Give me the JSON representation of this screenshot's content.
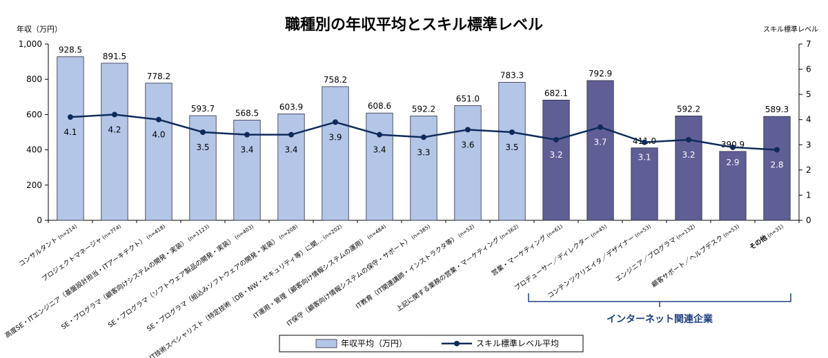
{
  "chart_data": {
    "type": "bar",
    "title": "職種別の年収平均とスキル標準レベル",
    "ylabel": "年収（万円）",
    "y2label": "スキル標準レベル",
    "ylim": [
      0,
      1000
    ],
    "yticks": [
      "0",
      "200",
      "400",
      "600",
      "800",
      "1,000"
    ],
    "y2lim": [
      0,
      7
    ],
    "y2ticks": [
      "0",
      "1",
      "2",
      "3",
      "4",
      "5",
      "6",
      "7"
    ],
    "categories": [
      {
        "label": "コンサルタント",
        "n": "(n=214)"
      },
      {
        "label": "プロジェクトマネージャ",
        "n": "(n=774)"
      },
      {
        "label": "高度SE・ITエンジニア（基盤設計担当・ITアーキテクト）",
        "n": "(n=418)"
      },
      {
        "label": "SE・プログラマ（顧客向けシステムの開発・実装）",
        "n": "(n=1123)"
      },
      {
        "label": "SE・プログラマ（ソフトウェア製品の開発・実装）",
        "n": "(n=403)"
      },
      {
        "label": "SE・プログラマ（組込みソフトウェアの開発・実装）",
        "n": "(n=208)"
      },
      {
        "label": "IT技術スペシャリスト（特定技術（DB・NW・セキュリティ等）に関…",
        "n": "(n=202)"
      },
      {
        "label": "IT運用・管理（顧客向け情報システムの運用）",
        "n": "(n=484)"
      },
      {
        "label": "IT保守（顧客向け情報システムの保守・サポート）",
        "n": "(n=385)"
      },
      {
        "label": "IT教育（IT関連講師・インストラクタ等）",
        "n": "(n=52)"
      },
      {
        "label": "上記に関する業務の営業・マーケティング",
        "n": "(n=362)"
      },
      {
        "label": "営業・マーケティング",
        "n": "(n=61)"
      },
      {
        "label": "プロデューサー／ディレクター",
        "n": "(n=45)"
      },
      {
        "label": "コンテンツクリエイタ／デザイナー",
        "n": "(n=53)"
      },
      {
        "label": "エンジニア／プログラマ",
        "n": "(n=132)"
      },
      {
        "label": "顧客サポート／ヘルプデスク",
        "n": "(n=53)"
      },
      {
        "label": "その他",
        "n": "(n=31)"
      }
    ],
    "series": [
      {
        "name": "年収平均（万円）",
        "type": "bar",
        "axis": "left",
        "values": [
          928.5,
          891.5,
          778.2,
          593.7,
          568.5,
          603.9,
          758.2,
          608.6,
          592.2,
          651.0,
          783.3,
          682.1,
          792.9,
          411.0,
          592.2,
          390.9,
          589.3
        ],
        "labels": [
          "928.5",
          "891.5",
          "778.2",
          "593.7",
          "568.5",
          "603.9",
          "758.2",
          "608.6",
          "592.2",
          "651.0",
          "783.3",
          "682.1",
          "792.9",
          "411.0",
          "592.2",
          "390.9",
          "589.3"
        ]
      },
      {
        "name": "スキル標準レベル平均",
        "type": "line",
        "axis": "right",
        "values": [
          4.1,
          4.2,
          4.0,
          3.5,
          3.4,
          3.4,
          3.9,
          3.4,
          3.3,
          3.6,
          3.5,
          3.2,
          3.7,
          3.1,
          3.2,
          2.9,
          2.8
        ],
        "labels": [
          "4.1",
          "4.2",
          "4.0",
          "3.5",
          "3.4",
          "3.4",
          "3.9",
          "3.4",
          "3.3",
          "3.6",
          "3.5",
          "3.2",
          "3.7",
          "3.1",
          "3.2",
          "2.9",
          "2.8"
        ]
      }
    ],
    "groups": [
      {
        "label": "インターネット関連企業",
        "start_index": 11,
        "end_index": 16
      }
    ],
    "colors": {
      "bar_it": "#b4c6e7",
      "bar_internet": "#5f5f96",
      "bar_border": "#2b2b44",
      "line": "#0f2a5a",
      "group_text": "#1f3f80"
    },
    "legend_position": "bottom-center",
    "grid": false
  }
}
